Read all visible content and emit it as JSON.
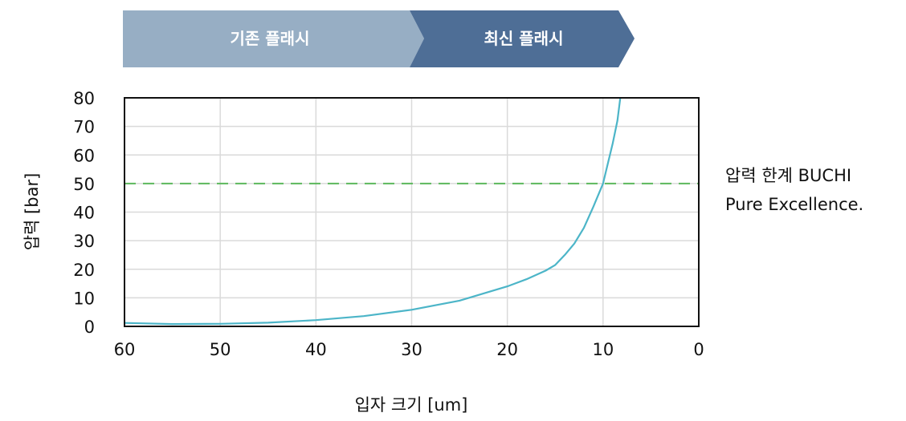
{
  "banners": [
    {
      "label": "기존 플래시",
      "color": "#97aec4"
    },
    {
      "label": "최신 플래시",
      "color": "#4e6e96"
    }
  ],
  "annotation": {
    "line1": "압력 한계 BUCHI",
    "line2": "Pure Excellence."
  },
  "chart_data": {
    "type": "line",
    "title": "",
    "xlabel": "입자 크기 [um]",
    "ylabel": "압력 [bar]",
    "xlim": [
      60,
      0
    ],
    "x_reversed": true,
    "ylim": [
      0,
      80
    ],
    "x_ticks": [
      60,
      50,
      40,
      30,
      20,
      10,
      0
    ],
    "y_ticks": [
      0,
      10,
      20,
      30,
      40,
      50,
      60,
      70,
      80
    ],
    "grid": true,
    "series": [
      {
        "color": "#4cb5c8",
        "points": [
          [
            60,
            1.2
          ],
          [
            55,
            0.8
          ],
          [
            50,
            0.9
          ],
          [
            45,
            1.3
          ],
          [
            40,
            2.2
          ],
          [
            35,
            3.6
          ],
          [
            30,
            5.8
          ],
          [
            25,
            9.0
          ],
          [
            20,
            14.0
          ],
          [
            18,
            16.5
          ],
          [
            16,
            19.5
          ],
          [
            15,
            21.5
          ],
          [
            14,
            25.0
          ],
          [
            13,
            29.0
          ],
          [
            12,
            34.5
          ],
          [
            11,
            42.0
          ],
          [
            10,
            50.0
          ],
          [
            9.5,
            57.0
          ],
          [
            9,
            64.0
          ],
          [
            8.5,
            72.0
          ],
          [
            8.2,
            80.0
          ]
        ]
      }
    ],
    "reference_lines": [
      {
        "axis": "y",
        "value": 50,
        "color": "#5cb85c",
        "style": "dashed"
      }
    ]
  }
}
